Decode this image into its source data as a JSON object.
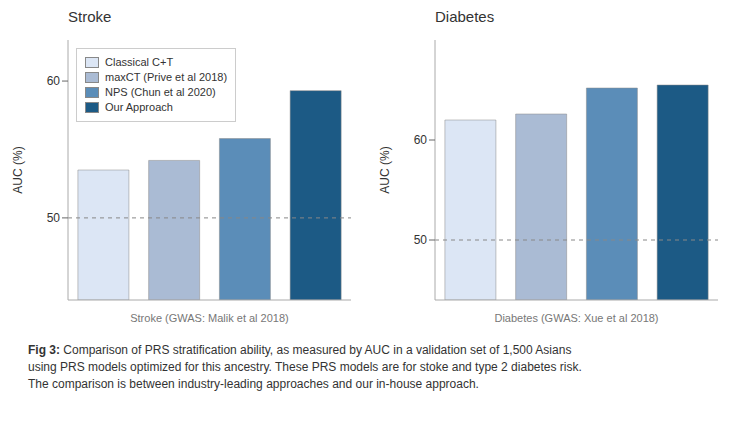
{
  "chart_data": [
    {
      "type": "bar",
      "title": "Stroke",
      "x_label": "Stroke (GWAS: Malik et al 2018)",
      "y_label": "AUC (%)",
      "categories": [
        "Classical C+T",
        "maxCT (Prive et al 2018)",
        "NPS (Chun et al 2020)",
        "Our Approach"
      ],
      "values": [
        53.5,
        54.2,
        55.8,
        59.3
      ],
      "colors": [
        "#dce6f5",
        "#aabbd4",
        "#5b8db8",
        "#1c5a85"
      ],
      "ylim": [
        44,
        63
      ],
      "yticks": [
        50,
        60
      ],
      "hline": 50,
      "grid": false,
      "tick_labels": "y",
      "legend": "upper left"
    },
    {
      "type": "bar",
      "title": "Diabetes",
      "x_label": "Diabetes (GWAS: Xue et al 2018)",
      "y_label": "AUC (%)",
      "categories": [
        "Classical C+T",
        "maxCT (Prive et al 2018)",
        "NPS (Chun et al 2020)",
        "Our Approach"
      ],
      "values": [
        62.0,
        62.6,
        65.2,
        65.5
      ],
      "colors": [
        "#dce6f5",
        "#aabbd4",
        "#5b8db8",
        "#1c5a85"
      ],
      "ylim": [
        44,
        70
      ],
      "yticks": [
        50,
        60
      ],
      "hline": 50,
      "grid": false,
      "tick_labels": "y"
    }
  ],
  "caption_label": "Fig 3:",
  "caption": [
    "Comparison of PRS stratification ability, as measured by AUC in a validation set of 1,500 Asians",
    "using PRS models optimized for this ancestry. These PRS models are for stoke and type 2 diabetes risk.",
    "The comparison is between industry-leading approaches and our in-house approach."
  ]
}
